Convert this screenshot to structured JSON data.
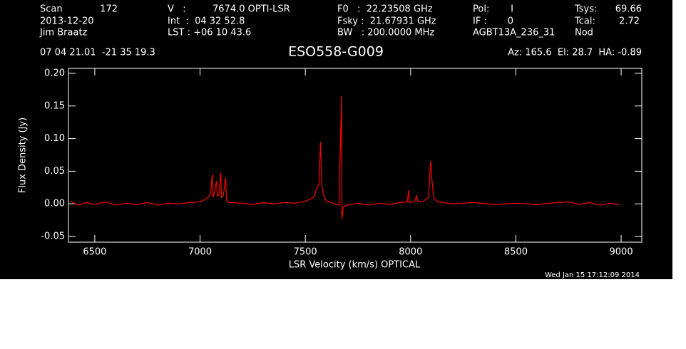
{
  "chart_data": {
    "type": "line",
    "title": "ESO558-G009",
    "annotations": [
      "Scan",
      "172",
      "2013-12-20",
      "Jim Braatz",
      "V   :",
      "7674.0 OPTI-LSR",
      "Int  :  04 32 52.8",
      "LST : +06 10 43.6",
      "F0   :  22.23508 GHz",
      "Fsky :  21.67931 GHz",
      "BW   : 200.0000 MHz",
      "Pol:",
      "I",
      "IF :",
      "0",
      "AGBT13A_236_31",
      "Tsys:",
      "69.66",
      "Tcal:",
      "2.72",
      "Nod",
      "07 04 21.01  -21 35 19.3",
      "Az: 165.6  El: 28.7  HA: -0.89",
      "Wed Jan 15 17:12:09 2014"
    ],
    "x_label": "LSR Velocity (km/s) OPTICAL",
    "y_label": "Flux Density (Jy)",
    "color": "#ff0000",
    "x": [
      6385,
      6420,
      6460,
      6500,
      6550,
      6600,
      6650,
      6700,
      6750,
      6800,
      6850,
      6900,
      6950,
      7000,
      7030,
      7050,
      7058,
      7062,
      7070,
      7078,
      7082,
      7090,
      7098,
      7102,
      7110,
      7122,
      7126,
      7140,
      7200,
      7250,
      7300,
      7350,
      7400,
      7450,
      7500,
      7540,
      7555,
      7565,
      7572,
      7578,
      7585,
      7600,
      7630,
      7660,
      7672,
      7674,
      7680,
      7700,
      7750,
      7800,
      7850,
      7900,
      7950,
      7985,
      7990,
      7995,
      8020,
      8028,
      8035,
      8060,
      8085,
      8095,
      8100,
      8110,
      8130,
      8200,
      8300,
      8400,
      8500,
      8600,
      8700,
      8750,
      8800,
      8850,
      8900,
      8950,
      8990
    ],
    "values": [
      0.004,
      -0.002,
      0.002,
      -0.001,
      0.003,
      -0.002,
      0.001,
      -0.001,
      0.002,
      -0.002,
      0.001,
      0.0,
      0.002,
      0.003,
      0.008,
      0.015,
      0.045,
      0.01,
      0.02,
      0.035,
      0.012,
      0.015,
      0.048,
      0.01,
      0.012,
      0.04,
      0.005,
      0.002,
      0.001,
      -0.001,
      0.002,
      0.0,
      0.002,
      0.001,
      0.004,
      0.01,
      0.025,
      0.03,
      0.095,
      0.03,
      0.015,
      0.004,
      0.001,
      -0.002,
      0.165,
      -0.023,
      -0.005,
      -0.002,
      0.001,
      -0.002,
      0.001,
      -0.001,
      0.002,
      0.003,
      0.021,
      0.002,
      0.004,
      0.013,
      0.003,
      0.004,
      0.01,
      0.066,
      0.04,
      0.008,
      0.003,
      0.0,
      0.002,
      -0.001,
      0.001,
      -0.001,
      0.002,
      0.003,
      -0.001,
      0.002,
      -0.002,
      0.001,
      -0.001
    ],
    "xlim": [
      6375,
      9098
    ],
    "ylim": [
      -0.0587,
      0.2076
    ],
    "xticks": [
      6500,
      7000,
      7500,
      8000,
      8500,
      9000
    ],
    "yticks": [
      {
        "value": -0.05,
        "label": "-0.05"
      },
      {
        "value": 0,
        "label": "0.00"
      },
      {
        "value": 0.05,
        "label": "0.05"
      },
      {
        "value": 0.1,
        "label": "0.10"
      },
      {
        "value": 0.15,
        "label": "0.15"
      },
      {
        "value": 0.2,
        "label": "0.20"
      }
    ]
  }
}
